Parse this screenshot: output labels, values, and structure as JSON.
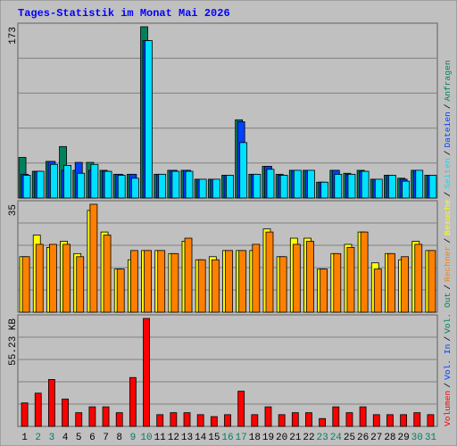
{
  "chart_data": {
    "type": "bar",
    "title": "Tages-Statistik im Monat Mai 2026",
    "categories": [
      "1",
      "2",
      "3",
      "4",
      "5",
      "6",
      "7",
      "8",
      "9",
      "10",
      "11",
      "12",
      "13",
      "14",
      "15",
      "16",
      "17",
      "18",
      "19",
      "20",
      "21",
      "22",
      "23",
      "24",
      "25",
      "26",
      "27",
      "28",
      "29",
      "30",
      "31"
    ],
    "category_colors": [
      "#000000",
      "#00805c",
      "#00805c",
      "#000000",
      "#000000",
      "#000000",
      "#000000",
      "#000000",
      "#00805c",
      "#00805c",
      "#000000",
      "#000000",
      "#000000",
      "#000000",
      "#000000",
      "#00805c",
      "#00805c",
      "#000000",
      "#000000",
      "#000000",
      "#000000",
      "#000000",
      "#00805c",
      "#00805c",
      "#000000",
      "#000000",
      "#000000",
      "#000000",
      "#000000",
      "#00805c",
      "#00805c"
    ],
    "panels": [
      {
        "ylim": [
          0,
          173
        ],
        "yticks": [
          173
        ],
        "series": [
          {
            "name": "Anfragen",
            "color": "#00805c",
            "values": [
              41,
              27,
              37,
              52,
              28,
              36,
              28,
              24,
              24,
              173,
              24,
              28,
              28,
              19,
              19,
              23,
              79,
              24,
              32,
              24,
              28,
              28,
              16,
              28,
              25,
              28,
              19,
              23,
              20,
              28,
              23
            ]
          },
          {
            "name": "Dateien",
            "color": "#0040ff",
            "values": [
              24,
              27,
              37,
              28,
              36,
              28,
              27,
              24,
              24,
              159,
              24,
              28,
              28,
              19,
              19,
              23,
              77,
              24,
              32,
              23,
              28,
              28,
              16,
              28,
              24,
              27,
              19,
              23,
              19,
              28,
              23
            ]
          },
          {
            "name": "Seiten",
            "color": "#00e0ff",
            "values": [
              23,
              27,
              34,
              33,
              25,
              34,
              27,
              23,
              20,
              159,
              24,
              27,
              27,
              19,
              19,
              23,
              56,
              24,
              29,
              23,
              28,
              28,
              16,
              24,
              24,
              27,
              19,
              23,
              17,
              28,
              23
            ]
          }
        ]
      },
      {
        "ylim": [
          0,
          35
        ],
        "yticks": [
          35
        ],
        "series": [
          {
            "name": "Besuche",
            "color": "#ffff00",
            "values": [
              18,
              25,
              21,
              23,
              19,
              33,
              26,
              14,
              17,
              20,
              20,
              19,
              23,
              17,
              18,
              20,
              20,
              20,
              27,
              18,
              24,
              24,
              14,
              19,
              22,
              26,
              16,
              19,
              17,
              23,
              20
            ]
          },
          {
            "name": "Rechner",
            "color": "#ff8000",
            "values": [
              18,
              22,
              22,
              22,
              18,
              35,
              25,
              14,
              20,
              20,
              20,
              19,
              24,
              17,
              17,
              20,
              20,
              22,
              26,
              18,
              22,
              23,
              14,
              19,
              21,
              26,
              14,
              19,
              18,
              22,
              20
            ]
          }
        ]
      },
      {
        "ylim": [
          0,
          55.23
        ],
        "yticks": [
          {
            "value": 55.23,
            "label": "55.23 KB"
          }
        ],
        "series": [
          {
            "name": "Volumen",
            "color": "#ff0000",
            "values": [
              12,
              17,
              24,
              14,
              7,
              10,
              10,
              7,
              25,
              55.23,
              6,
              7,
              7,
              6,
              5,
              6,
              18,
              6,
              10,
              6,
              7,
              7,
              4,
              10,
              7,
              10,
              6,
              6,
              6,
              7,
              6
            ]
          }
        ]
      }
    ],
    "legend_extra": [
      {
        "name": "Vol. In",
        "color": "#0040ff"
      },
      {
        "name": "Vol. Out",
        "color": "#00805c"
      }
    ],
    "legend_separator": "/"
  }
}
